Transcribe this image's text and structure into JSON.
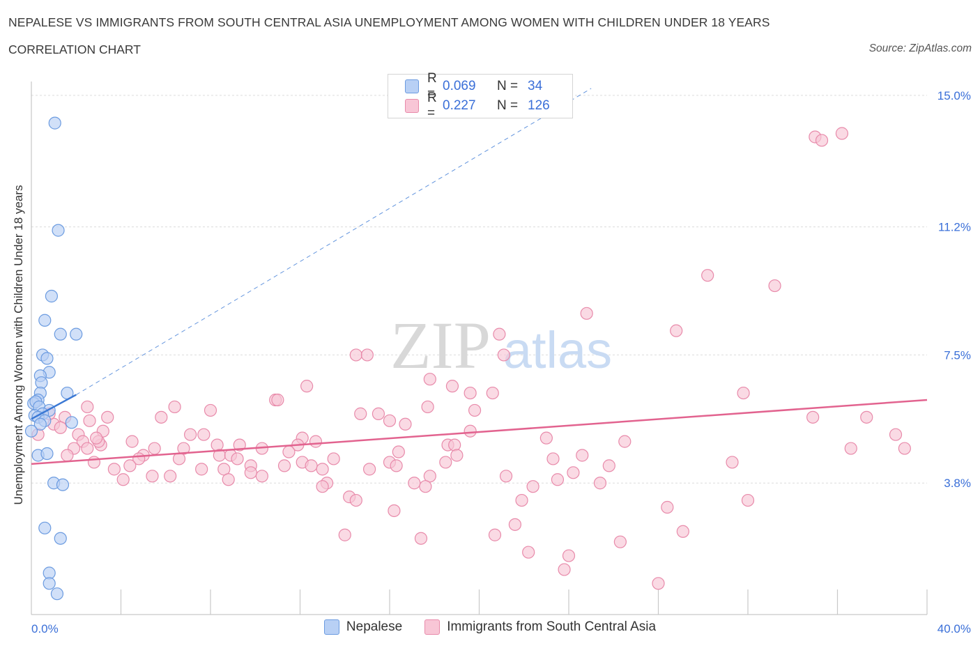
{
  "header": {
    "title": "NEPALESE VS IMMIGRANTS FROM SOUTH CENTRAL ASIA UNEMPLOYMENT AMONG WOMEN WITH CHILDREN UNDER 18 YEARS",
    "subtitle": "CORRELATION CHART",
    "source": "Source: ZipAtlas.com"
  },
  "watermark": {
    "part1": "ZIP",
    "part2": "atlas"
  },
  "legend_top": {
    "rows": [
      {
        "r_label": "R =",
        "r_value": "0.069",
        "n_label": "N =",
        "n_value": "34"
      },
      {
        "r_label": "R =",
        "r_value": "0.227",
        "n_label": "N =",
        "n_value": "126"
      }
    ]
  },
  "legend_bottom": {
    "series1": "Nepalese",
    "series2": "Immigrants from South Central Asia"
  },
  "colors": {
    "nepalese_fill": "#b8d0f5",
    "nepalese_stroke": "#6b9be0",
    "nepalese_line": "#3a78d4",
    "immigrants_fill": "#f8c6d6",
    "immigrants_stroke": "#e88aaa",
    "immigrants_line": "#e2638f",
    "tick_label": "#3a6fd8",
    "grid": "#dcdcdc"
  },
  "chart_data": {
    "type": "scatter",
    "title": "NEPALESE VS IMMIGRANTS FROM SOUTH CENTRAL ASIA UNEMPLOYMENT AMONG WOMEN WITH CHILDREN UNDER 18 YEARS",
    "xlabel": "",
    "ylabel": "Unemployment Among Women with Children Under 18 years",
    "xlim": [
      0,
      40
    ],
    "ylim": [
      0,
      15.4
    ],
    "x_tick_labels": [
      "0.0%",
      "40.0%"
    ],
    "y_ticks": [
      3.8,
      7.5,
      11.2,
      15.0
    ],
    "y_tick_labels": [
      "3.8%",
      "7.5%",
      "11.2%",
      "15.0%"
    ],
    "grid": true,
    "legend": "bottom",
    "series": [
      {
        "name": "Nepalese",
        "points": [
          [
            1.05,
            14.2
          ],
          [
            1.2,
            11.1
          ],
          [
            0.9,
            9.2
          ],
          [
            0.6,
            8.5
          ],
          [
            1.3,
            8.1
          ],
          [
            2.0,
            8.1
          ],
          [
            0.5,
            7.5
          ],
          [
            0.7,
            7.4
          ],
          [
            0.8,
            7.0
          ],
          [
            0.4,
            6.9
          ],
          [
            0.45,
            6.7
          ],
          [
            1.6,
            6.4
          ],
          [
            0.4,
            6.4
          ],
          [
            0.3,
            6.2
          ],
          [
            0.1,
            6.1
          ],
          [
            0.2,
            6.15
          ],
          [
            0.35,
            6.0
          ],
          [
            0.8,
            5.9
          ],
          [
            0.5,
            5.8
          ],
          [
            0.15,
            5.75
          ],
          [
            0.3,
            5.7
          ],
          [
            0.6,
            5.6
          ],
          [
            0.4,
            5.5
          ],
          [
            1.8,
            5.55
          ],
          [
            0.0,
            5.3
          ],
          [
            0.3,
            4.6
          ],
          [
            0.7,
            4.65
          ],
          [
            1.0,
            3.8
          ],
          [
            1.4,
            3.75
          ],
          [
            0.6,
            2.5
          ],
          [
            1.3,
            2.2
          ],
          [
            0.8,
            1.2
          ],
          [
            0.8,
            0.9
          ],
          [
            1.15,
            0.6
          ]
        ]
      },
      {
        "name": "Immigrants from South Central Asia",
        "points": [
          [
            35.0,
            13.8
          ],
          [
            35.3,
            13.7
          ],
          [
            36.2,
            13.9
          ],
          [
            30.2,
            9.8
          ],
          [
            33.2,
            9.5
          ],
          [
            24.8,
            8.7
          ],
          [
            28.8,
            8.2
          ],
          [
            20.9,
            8.1
          ],
          [
            14.5,
            7.5
          ],
          [
            15.0,
            7.5
          ],
          [
            21.1,
            7.5
          ],
          [
            17.8,
            6.8
          ],
          [
            12.3,
            6.6
          ],
          [
            18.8,
            6.6
          ],
          [
            19.6,
            6.4
          ],
          [
            20.6,
            6.4
          ],
          [
            31.8,
            6.4
          ],
          [
            10.9,
            6.2
          ],
          [
            11.0,
            6.2
          ],
          [
            2.5,
            6.0
          ],
          [
            6.4,
            6.0
          ],
          [
            8.0,
            5.9
          ],
          [
            17.7,
            6.0
          ],
          [
            14.7,
            5.8
          ],
          [
            15.5,
            5.8
          ],
          [
            16.0,
            5.6
          ],
          [
            19.8,
            5.9
          ],
          [
            1.5,
            5.7
          ],
          [
            3.4,
            5.7
          ],
          [
            5.8,
            5.7
          ],
          [
            16.7,
            5.5
          ],
          [
            34.9,
            5.7
          ],
          [
            37.3,
            5.7
          ],
          [
            19.6,
            5.3
          ],
          [
            3.2,
            5.3
          ],
          [
            2.1,
            5.2
          ],
          [
            7.1,
            5.2
          ],
          [
            7.7,
            5.2
          ],
          [
            12.1,
            5.1
          ],
          [
            23.0,
            5.1
          ],
          [
            26.5,
            5.0
          ],
          [
            38.6,
            5.2
          ],
          [
            4.5,
            5.0
          ],
          [
            2.3,
            5.0
          ],
          [
            3.1,
            4.9
          ],
          [
            8.3,
            4.9
          ],
          [
            9.3,
            4.9
          ],
          [
            11.9,
            4.9
          ],
          [
            18.6,
            4.9
          ],
          [
            18.9,
            4.9
          ],
          [
            1.9,
            4.8
          ],
          [
            2.5,
            4.8
          ],
          [
            5.5,
            4.8
          ],
          [
            6.8,
            4.8
          ],
          [
            10.3,
            4.8
          ],
          [
            11.5,
            4.7
          ],
          [
            16.4,
            4.7
          ],
          [
            36.6,
            4.8
          ],
          [
            39.0,
            4.8
          ],
          [
            1.6,
            4.6
          ],
          [
            5.0,
            4.6
          ],
          [
            8.4,
            4.6
          ],
          [
            4.8,
            4.5
          ],
          [
            6.6,
            4.5
          ],
          [
            8.9,
            4.6
          ],
          [
            9.2,
            4.5
          ],
          [
            13.5,
            4.5
          ],
          [
            16.0,
            4.4
          ],
          [
            19.0,
            4.6
          ],
          [
            23.3,
            4.5
          ],
          [
            24.6,
            4.6
          ],
          [
            2.8,
            4.4
          ],
          [
            4.4,
            4.3
          ],
          [
            9.8,
            4.3
          ],
          [
            11.3,
            4.3
          ],
          [
            12.1,
            4.4
          ],
          [
            12.5,
            4.3
          ],
          [
            16.3,
            4.3
          ],
          [
            18.5,
            4.4
          ],
          [
            3.7,
            4.2
          ],
          [
            7.6,
            4.2
          ],
          [
            8.6,
            4.2
          ],
          [
            13.0,
            4.2
          ],
          [
            15.1,
            4.2
          ],
          [
            9.8,
            4.1
          ],
          [
            24.2,
            4.1
          ],
          [
            5.4,
            4.0
          ],
          [
            6.2,
            4.0
          ],
          [
            8.8,
            3.9
          ],
          [
            10.3,
            4.0
          ],
          [
            17.8,
            4.0
          ],
          [
            4.1,
            3.9
          ],
          [
            13.2,
            3.8
          ],
          [
            17.1,
            3.8
          ],
          [
            22.4,
            3.7
          ],
          [
            25.4,
            3.8
          ],
          [
            13.0,
            3.7
          ],
          [
            17.6,
            3.7
          ],
          [
            23.5,
            3.9
          ],
          [
            14.2,
            3.4
          ],
          [
            14.5,
            3.3
          ],
          [
            21.9,
            3.3
          ],
          [
            28.4,
            3.1
          ],
          [
            32.0,
            3.3
          ],
          [
            16.2,
            3.0
          ],
          [
            21.6,
            2.6
          ],
          [
            29.1,
            2.4
          ],
          [
            14.0,
            2.3
          ],
          [
            17.4,
            2.2
          ],
          [
            20.7,
            2.3
          ],
          [
            26.3,
            2.1
          ],
          [
            22.2,
            1.8
          ],
          [
            24.0,
            1.7
          ],
          [
            23.8,
            1.3
          ],
          [
            28.0,
            0.9
          ],
          [
            2.6,
            5.6
          ],
          [
            3.0,
            5.0
          ],
          [
            0.3,
            5.2
          ],
          [
            1.0,
            5.5
          ],
          [
            0.8,
            5.8
          ],
          [
            1.3,
            5.4
          ],
          [
            2.9,
            5.1
          ],
          [
            12.7,
            5.0
          ],
          [
            21.2,
            4.0
          ],
          [
            25.8,
            4.3
          ],
          [
            31.3,
            4.4
          ]
        ]
      }
    ],
    "trendlines": [
      {
        "series": "Nepalese",
        "solid": [
          [
            0.0,
            5.65
          ],
          [
            2.0,
            6.35
          ]
        ],
        "dashed_to": [
          25.0,
          15.2
        ]
      },
      {
        "series": "Immigrants from South Central Asia",
        "solid": [
          [
            0.0,
            4.35
          ],
          [
            40.0,
            6.2
          ]
        ]
      }
    ]
  }
}
